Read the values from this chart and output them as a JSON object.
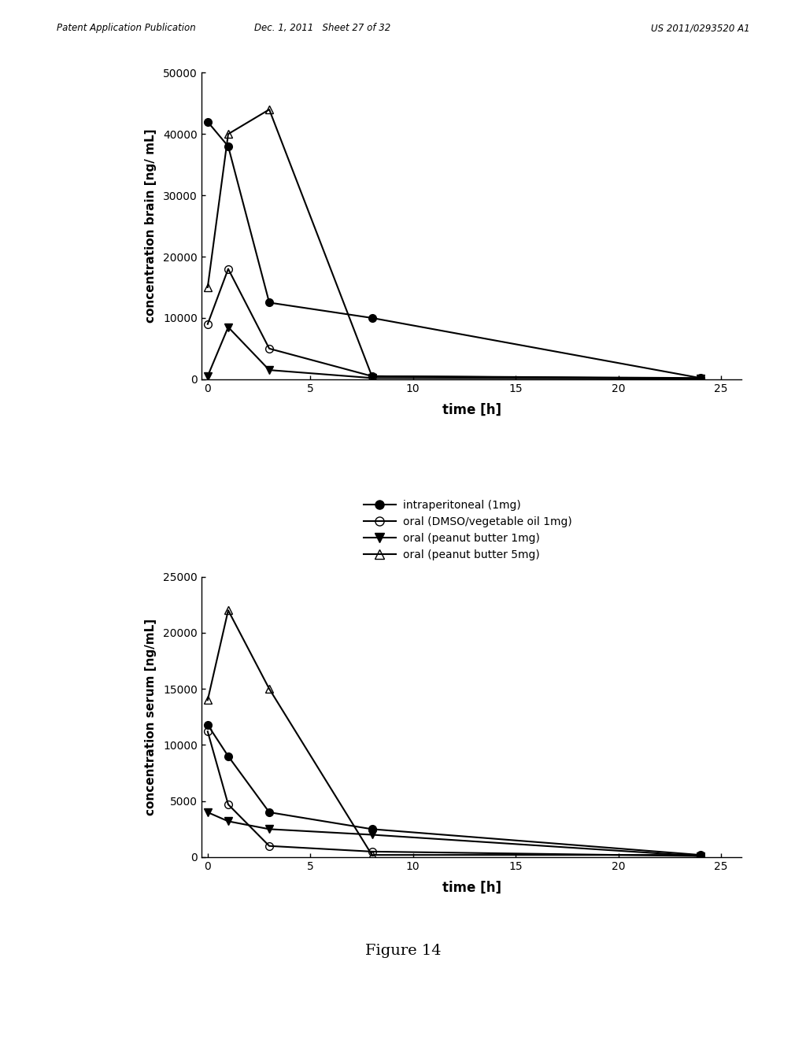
{
  "top_chart": {
    "ylabel": "concentration brain [ng/ mL]",
    "xlabel": "time [h]",
    "ylim": [
      0,
      50000
    ],
    "yticks": [
      0,
      10000,
      20000,
      30000,
      40000,
      50000
    ],
    "xticks": [
      0,
      5,
      10,
      15,
      20,
      25
    ],
    "series": [
      {
        "label": "intraperitoneal (1mg)",
        "x": [
          0,
          1,
          3,
          8,
          24
        ],
        "y": [
          42000,
          38000,
          12500,
          10000,
          200
        ],
        "marker": "o",
        "fillstyle": "full",
        "color": "#000000"
      },
      {
        "label": "oral (DMSO/vegetable oil 1mg)",
        "x": [
          0,
          1,
          3,
          8,
          24
        ],
        "y": [
          9000,
          18000,
          5000,
          500,
          100
        ],
        "marker": "o",
        "fillstyle": "none",
        "color": "#000000"
      },
      {
        "label": "oral (peanut butter 1mg)",
        "x": [
          0,
          1,
          3,
          8,
          24
        ],
        "y": [
          500,
          8500,
          1500,
          200,
          100
        ],
        "marker": "v",
        "fillstyle": "full",
        "color": "#000000"
      },
      {
        "label": "oral (peanut butter 5mg)",
        "x": [
          0,
          1,
          3,
          8,
          24
        ],
        "y": [
          15000,
          40000,
          44000,
          500,
          200
        ],
        "marker": "^",
        "fillstyle": "none",
        "color": "#000000"
      }
    ]
  },
  "bottom_chart": {
    "ylabel": "concentration serum [ng/mL]",
    "xlabel": "time [h]",
    "ylim": [
      0,
      25000
    ],
    "yticks": [
      0,
      5000,
      10000,
      15000,
      20000,
      25000
    ],
    "xticks": [
      0,
      5,
      10,
      15,
      20,
      25
    ],
    "series": [
      {
        "label": "intraperitoneal (1mg)",
        "x": [
          0,
          1,
          3,
          8,
          24
        ],
        "y": [
          11800,
          9000,
          4000,
          2500,
          200
        ],
        "marker": "o",
        "fillstyle": "full",
        "color": "#000000"
      },
      {
        "label": "oral (DMSO/vegetable oil 1mg)",
        "x": [
          0,
          1,
          3,
          8,
          24
        ],
        "y": [
          11200,
          4700,
          1000,
          500,
          100
        ],
        "marker": "o",
        "fillstyle": "none",
        "color": "#000000"
      },
      {
        "label": "oral (peanut butter 1mg)",
        "x": [
          0,
          1,
          3,
          8,
          24
        ],
        "y": [
          4000,
          3200,
          2500,
          2000,
          100
        ],
        "marker": "v",
        "fillstyle": "full",
        "color": "#000000"
      },
      {
        "label": "oral (peanut butter 5mg)",
        "x": [
          0,
          1,
          3,
          8,
          24
        ],
        "y": [
          14000,
          22000,
          15000,
          200,
          200
        ],
        "marker": "^",
        "fillstyle": "none",
        "color": "#000000"
      }
    ]
  },
  "legend_labels": [
    "intraperitoneal (1mg)",
    "oral (DMSO/vegetable oil 1mg)",
    "oral (peanut butter 1mg)",
    "oral (peanut butter 5mg)"
  ],
  "header_left": "Patent Application Publication",
  "header_center": "Dec. 1, 2011   Sheet 27 of 32",
  "header_right": "US 2011/0293520 A1",
  "figure_label": "Figure 14",
  "background_color": "#ffffff"
}
